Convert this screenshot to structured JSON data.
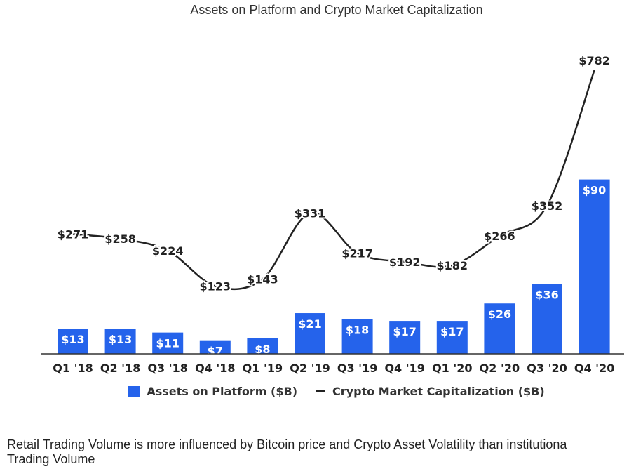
{
  "chart_data": {
    "type": "bar",
    "title": "Assets on Platform and Crypto Market Capitalization",
    "categories": [
      "Q1 '18",
      "Q2 '18",
      "Q3 '18",
      "Q4 '18",
      "Q1 '19",
      "Q2 '19",
      "Q3 '19",
      "Q4 '19",
      "Q1 '20",
      "Q2 '20",
      "Q3 '20",
      "Q4 '20"
    ],
    "series": [
      {
        "name": "Assets on Platform ($B)",
        "type": "bar",
        "color": "#2563eb",
        "values": [
          13,
          13,
          11,
          7,
          8,
          21,
          18,
          17,
          17,
          26,
          36,
          90
        ],
        "labels": [
          "$13",
          "$13",
          "$11",
          "$7",
          "$8",
          "$21",
          "$18",
          "$17",
          "$17",
          "$26",
          "$36",
          "$90"
        ]
      },
      {
        "name": "Crypto Market Capitalization ($B)",
        "type": "line",
        "color": "#222222",
        "values": [
          271,
          258,
          224,
          123,
          143,
          331,
          217,
          192,
          182,
          266,
          352,
          782
        ],
        "labels": [
          "$271",
          "$258",
          "$224",
          "$123",
          "$143",
          "$331",
          "$217",
          "$192",
          "$182",
          "$266",
          "$352",
          "$782"
        ]
      }
    ],
    "legend_position": "bottom",
    "grid": false
  },
  "caption": {
    "line1": "Retail Trading Volume is more influenced by Bitcoin price and Crypto Asset Volatility than institutiona",
    "line2": "Trading Volume"
  }
}
